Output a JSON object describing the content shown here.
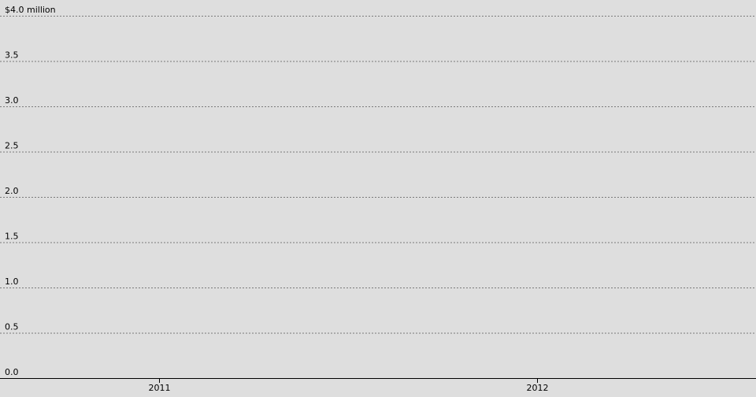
{
  "chart_data": {
    "type": "line",
    "title": "",
    "xlabel": "",
    "ylabel": "",
    "ylim": [
      0,
      4
    ],
    "y_ticks": [
      {
        "value": 0.0,
        "label": "0.0"
      },
      {
        "value": 0.5,
        "label": "0.5"
      },
      {
        "value": 1.0,
        "label": "1.0"
      },
      {
        "value": 1.5,
        "label": "1.5"
      },
      {
        "value": 2.0,
        "label": "2.0"
      },
      {
        "value": 2.5,
        "label": "2.5"
      },
      {
        "value": 3.0,
        "label": "3.0"
      },
      {
        "value": 3.5,
        "label": "3.5"
      },
      {
        "value": 4.0,
        "label": "$4.0 million"
      }
    ],
    "x_ticks": [
      {
        "value": 2011,
        "label": "2011"
      },
      {
        "value": 2012,
        "label": "2012"
      }
    ],
    "xlim": [
      2010.58,
      2012.58
    ],
    "grid": true,
    "series": []
  },
  "colors": {
    "background": "#dedede",
    "gridline": "#7a7a7a",
    "axis": "#000000",
    "text": "#000000"
  }
}
